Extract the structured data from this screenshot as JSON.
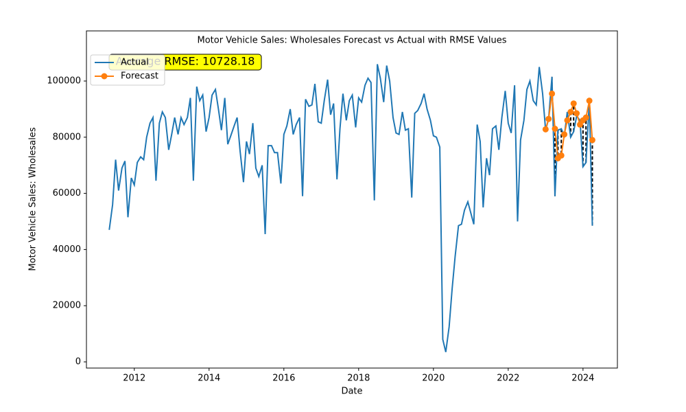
{
  "chart_data": {
    "type": "line",
    "title": "Motor Vehicle Sales: Wholesales Forecast vs Actual with RMSE Values",
    "x_label": "Date",
    "y_label": "Motor Vehicle Sales: Wholesales",
    "annotation": "Average RMSE: 10728.18",
    "legend": "upper left",
    "xlim": [
      2010.72,
      2024.92
    ],
    "xticks": [
      2012,
      2014,
      2016,
      2018,
      2020,
      2022,
      2024
    ],
    "ylim": [
      -2200,
      117850
    ],
    "yticks": [
      0,
      20000,
      40000,
      60000,
      80000,
      100000
    ],
    "series": [
      {
        "name": "Actual",
        "color": "#1f77b4",
        "x": [
          2011.33,
          2011.42,
          2011.5,
          2011.58,
          2011.67,
          2011.75,
          2011.83,
          2011.92,
          2012,
          2012.08,
          2012.17,
          2012.25,
          2012.33,
          2012.42,
          2012.5,
          2012.58,
          2012.67,
          2012.75,
          2012.83,
          2012.92,
          2013,
          2013.08,
          2013.17,
          2013.25,
          2013.33,
          2013.42,
          2013.5,
          2013.58,
          2013.67,
          2013.75,
          2013.83,
          2013.92,
          2014,
          2014.08,
          2014.17,
          2014.25,
          2014.33,
          2014.42,
          2014.5,
          2014.58,
          2014.67,
          2014.75,
          2014.83,
          2014.92,
          2015,
          2015.08,
          2015.17,
          2015.25,
          2015.33,
          2015.42,
          2015.5,
          2015.58,
          2015.67,
          2015.75,
          2015.83,
          2015.92,
          2016,
          2016.08,
          2016.17,
          2016.25,
          2016.33,
          2016.42,
          2016.5,
          2016.58,
          2016.67,
          2016.75,
          2016.83,
          2016.92,
          2017,
          2017.08,
          2017.17,
          2017.25,
          2017.33,
          2017.42,
          2017.5,
          2017.58,
          2017.67,
          2017.75,
          2017.83,
          2017.92,
          2018,
          2018.08,
          2018.17,
          2018.25,
          2018.33,
          2018.42,
          2018.5,
          2018.58,
          2018.67,
          2018.75,
          2018.83,
          2018.92,
          2019,
          2019.08,
          2019.17,
          2019.25,
          2019.33,
          2019.42,
          2019.5,
          2019.58,
          2019.67,
          2019.75,
          2019.83,
          2019.92,
          2020,
          2020.08,
          2020.17,
          2020.25,
          2020.33,
          2020.42,
          2020.5,
          2020.58,
          2020.67,
          2020.75,
          2020.83,
          2020.92,
          2021,
          2021.08,
          2021.17,
          2021.25,
          2021.33,
          2021.42,
          2021.5,
          2021.58,
          2021.67,
          2021.75,
          2021.83,
          2021.92,
          2022,
          2022.08,
          2022.17,
          2022.25,
          2022.33,
          2022.42,
          2022.5,
          2022.58,
          2022.67,
          2022.75,
          2022.83,
          2022.92,
          2023,
          2023.08,
          2023.17,
          2023.25,
          2023.33,
          2023.42,
          2023.5,
          2023.58,
          2023.67,
          2023.75,
          2023.83,
          2023.92,
          2024,
          2024.08,
          2024.17,
          2024.25
        ],
        "values": [
          47000,
          56000,
          72000,
          61000,
          69000,
          71500,
          51500,
          65500,
          63000,
          71000,
          73000,
          72000,
          80000,
          85000,
          87000,
          64500,
          85000,
          89000,
          87000,
          75500,
          81000,
          87000,
          81000,
          87000,
          84500,
          87000,
          94000,
          64500,
          98000,
          93000,
          95000,
          82000,
          87000,
          95000,
          97000,
          90000,
          82500,
          94000,
          77500,
          80500,
          84000,
          87000,
          75000,
          64000,
          78500,
          74000,
          85000,
          69000,
          66000,
          70000,
          45500,
          77000,
          77000,
          74500,
          74500,
          63500,
          81000,
          84000,
          90000,
          81000,
          84500,
          87000,
          59000,
          93500,
          91000,
          91500,
          99000,
          85500,
          85000,
          93000,
          100500,
          88000,
          92000,
          65000,
          83000,
          95500,
          86000,
          93000,
          95000,
          83500,
          94000,
          92500,
          98500,
          101000,
          99500,
          57500,
          106000,
          101000,
          92500,
          105500,
          100000,
          87000,
          81500,
          81000,
          89000,
          82500,
          83000,
          58500,
          88500,
          89500,
          92000,
          95500,
          90000,
          86000,
          80500,
          80000,
          76500,
          8000,
          3500,
          12500,
          26000,
          37500,
          48500,
          49000,
          54000,
          57000,
          53000,
          49000,
          84500,
          78500,
          55000,
          72500,
          66500,
          83000,
          84000,
          75500,
          87000,
          96500,
          85000,
          81500,
          98500,
          50000,
          79000,
          86000,
          97000,
          100000,
          93000,
          91500,
          105000,
          95500,
          82500,
          86500,
          101500,
          59000,
          82500,
          83000,
          80500,
          89000,
          80000,
          82000,
          87500,
          86000,
          69500,
          71000,
          93000,
          48500
        ]
      },
      {
        "name": "Forecast",
        "color": "#ff7f0e",
        "x": [
          2023,
          2023.08,
          2023.17,
          2023.25,
          2023.33,
          2023.42,
          2023.5,
          2023.58,
          2023.67,
          2023.75,
          2023.83,
          2023.92,
          2024,
          2024.08,
          2024.17,
          2024.25
        ],
        "values": [
          82800,
          86500,
          95500,
          83000,
          72500,
          73500,
          81000,
          86000,
          89000,
          92000,
          88500,
          84500,
          86000,
          87000,
          93000,
          79000
        ]
      }
    ]
  }
}
